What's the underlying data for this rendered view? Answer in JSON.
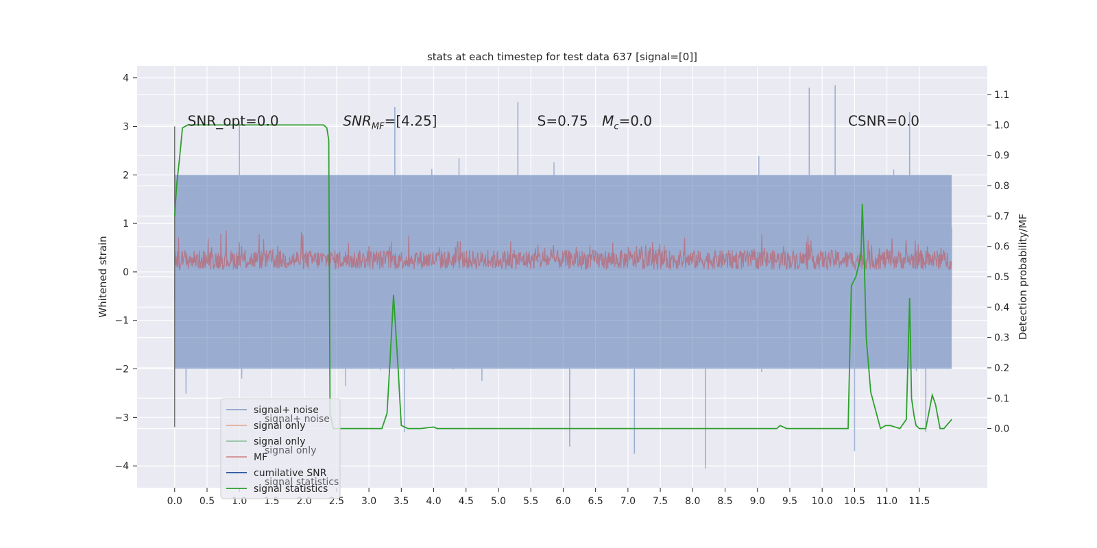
{
  "chart_data": {
    "type": "line",
    "title": "stats at each timestep for test data 637 [signal=[0]]",
    "ylabel_left": "Whitened strain",
    "ylabel_right": "Detection probability/MF",
    "xlabel": "",
    "grid": true,
    "background": "#eaeaf2",
    "x_range": [
      -0.58,
      12.55
    ],
    "ylim_left": [
      -4.45,
      4.25
    ],
    "ylim_right": [
      -0.195,
      1.195
    ],
    "x_ticks": [
      "0.0",
      "0.5",
      "1.0",
      "1.5",
      "2.0",
      "2.5",
      "3.0",
      "3.5",
      "4.0",
      "4.5",
      "5.0",
      "5.5",
      "6.0",
      "6.5",
      "7.0",
      "7.5",
      "8.0",
      "8.5",
      "9.0",
      "9.5",
      "10.0",
      "10.5",
      "11.0",
      "11.5"
    ],
    "y_ticks_left": [
      "4",
      "3",
      "2",
      "1",
      "0",
      "−1",
      "−2",
      "−3",
      "−4"
    ],
    "y_ticks_right": [
      "1.1",
      "1.0",
      "0.9",
      "0.8",
      "0.7",
      "0.6",
      "0.5",
      "0.4",
      "0.3",
      "0.2",
      "0.1",
      "0.0"
    ],
    "annotations": [
      {
        "text": "SNR_opt=0.0",
        "x": 0.2,
        "y": 3.1
      },
      {
        "text": "SNR",
        "sub": "MF",
        "suffix": "=[4.25]",
        "x": 2.6,
        "y": 3.1
      },
      {
        "text": "S=0.75",
        "x": 5.6,
        "y": 3.1
      },
      {
        "text": "M",
        "sub": "c",
        "suffix": "=0.0",
        "x": 6.6,
        "y": 3.1
      },
      {
        "text": "CSNR=0.0",
        "x": 10.4,
        "y": 3.1
      }
    ],
    "legend": {
      "placement": "lower-left",
      "entries": [
        {
          "label": "signal+ noise",
          "color": "#4c72b0"
        },
        {
          "label": "signal only",
          "color": "#dd8452"
        },
        {
          "label": "signal only",
          "color": "#55a868"
        },
        {
          "label": "MF",
          "color": "#c44e52"
        },
        {
          "label": "cumilative SNR",
          "color": "#1f4e9a"
        },
        {
          "label": "signal statistics",
          "color": "#2ca02c"
        }
      ],
      "ghost_labels": [
        "signal+ noise",
        "signal only",
        "signal statistics"
      ]
    },
    "series": [
      {
        "name": "signal+ noise",
        "axis": "left",
        "color": "#4c72b0",
        "alpha": 0.5,
        "x_range": [
          0.0,
          12.0
        ],
        "envelope_upper": 2.0,
        "envelope_lower": -2.0,
        "peak_upper": [
          [
            1.0,
            3.1
          ],
          [
            3.4,
            3.4
          ],
          [
            5.3,
            3.5
          ],
          [
            9.8,
            3.8
          ],
          [
            10.2,
            3.85
          ],
          [
            11.35,
            3.3
          ]
        ],
        "peak_lower": [
          [
            3.55,
            -3.3
          ],
          [
            6.1,
            -3.6
          ],
          [
            7.1,
            -3.75
          ],
          [
            8.2,
            -4.05
          ],
          [
            10.5,
            -3.7
          ],
          [
            11.6,
            -3.3
          ]
        ]
      },
      {
        "name": "MF",
        "axis": "left",
        "color": "#c44e52",
        "alpha": 0.55,
        "x_range": [
          0.0,
          12.0
        ],
        "typical_range": [
          0.05,
          0.45
        ],
        "peak": 1.0
      },
      {
        "name": "signal statistics",
        "axis": "right",
        "color": "#2ca02c",
        "x": [
          0.0,
          0.03,
          0.08,
          0.12,
          0.2,
          0.35,
          0.6,
          1.0,
          2.0,
          2.3,
          2.35,
          2.38,
          2.4,
          2.45,
          2.5,
          2.6,
          3.0,
          3.2,
          3.28,
          3.32,
          3.38,
          3.45,
          3.5,
          3.6,
          3.8,
          4.0,
          4.05,
          4.2,
          5.0,
          6.0,
          7.0,
          8.0,
          8.4,
          8.7,
          9.0,
          9.3,
          9.35,
          9.45,
          9.6,
          10.0,
          10.4,
          10.45,
          10.52,
          10.6,
          10.62,
          10.65,
          10.68,
          10.75,
          10.9,
          10.98,
          11.05,
          11.2,
          11.3,
          11.35,
          11.38,
          11.42,
          11.45,
          11.5,
          11.6,
          11.7,
          11.75,
          11.82,
          11.88,
          12.0
        ],
        "y": [
          0.7,
          0.8,
          0.9,
          0.99,
          1.0,
          1.0,
          1.0,
          1.0,
          1.0,
          1.0,
          0.99,
          0.95,
          0.05,
          0.0,
          0.0,
          0.0,
          0.0,
          0.0,
          0.05,
          0.2,
          0.44,
          0.2,
          0.01,
          0.0,
          0.0,
          0.005,
          0.0,
          0.0,
          0.0,
          0.0,
          0.0,
          0.0,
          0.0,
          0.0,
          0.0,
          0.0,
          0.01,
          0.0,
          0.0,
          0.0,
          0.0,
          0.47,
          0.5,
          0.57,
          0.74,
          0.55,
          0.3,
          0.12,
          0.0,
          0.01,
          0.01,
          0.0,
          0.03,
          0.43,
          0.1,
          0.04,
          0.01,
          0.0,
          0.0,
          0.11,
          0.08,
          0.0,
          0.0,
          0.03
        ]
      }
    ]
  }
}
